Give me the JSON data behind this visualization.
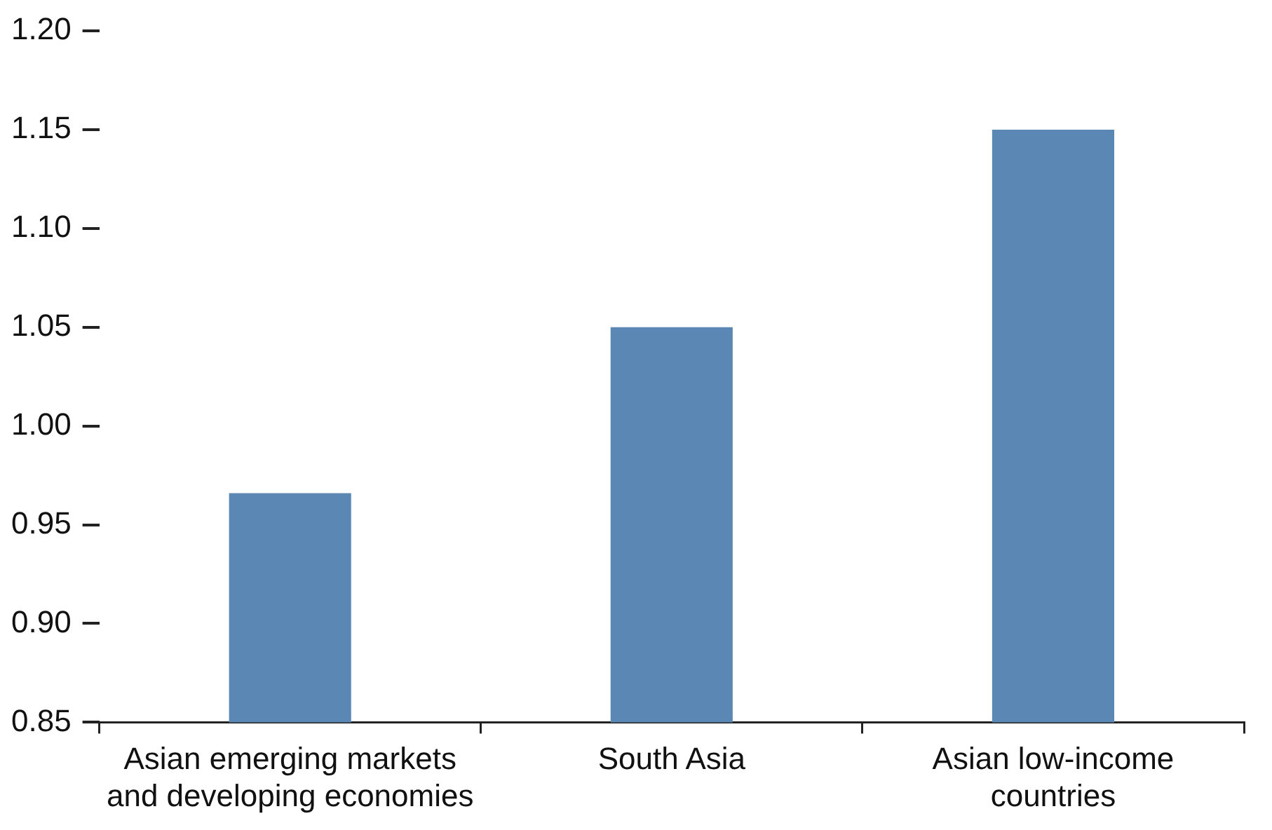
{
  "chart_data": {
    "type": "bar",
    "categories": [
      "Asian emerging markets and developing economies",
      "South Asia",
      "Asian low-income countries"
    ],
    "values": [
      0.966,
      1.05,
      1.15
    ],
    "color": "#5a87b3",
    "ylim": [
      0.85,
      1.2
    ],
    "yticks": [
      0.85,
      {
        "value": 0.9,
        "label": "0.90"
      },
      0.95,
      {
        "value": 1.0,
        "label": "1.00"
      },
      1.05,
      {
        "value": 1.1,
        "label": "1.10"
      },
      1.15,
      {
        "value": 1.2,
        "label": "1.20"
      }
    ],
    "grid": false,
    "legend": false
  }
}
